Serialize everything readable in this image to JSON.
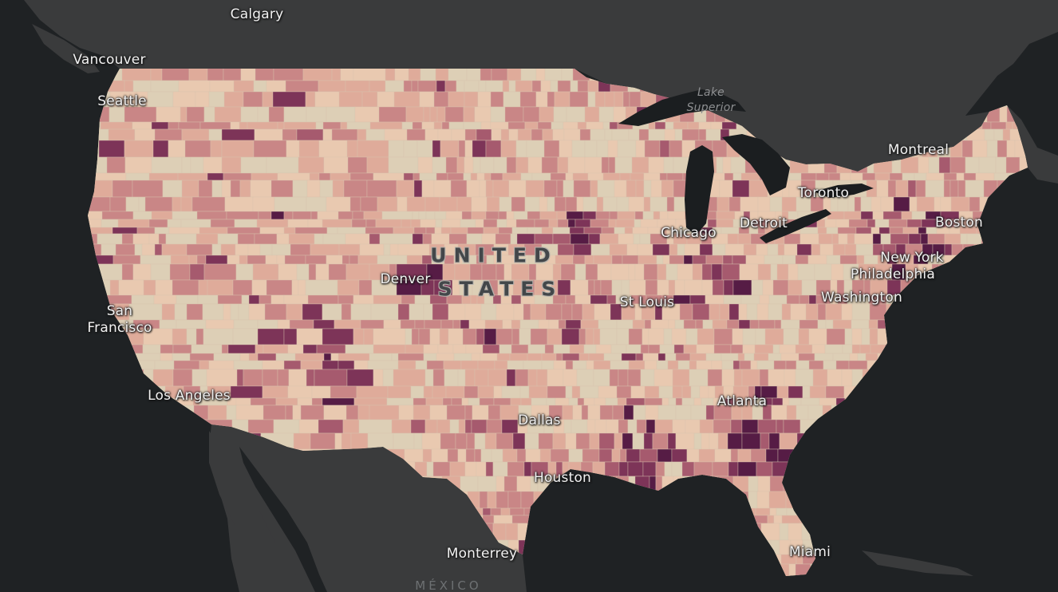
{
  "map": {
    "colors": {
      "water": "#1f2224",
      "land": "#3a3b3c",
      "lakes": "#1b1e20",
      "choropleth_scale": [
        "#ddcfb6",
        "#e9c9b0",
        "#dfab9a",
        "#c98686",
        "#a65a6e",
        "#7d3458",
        "#561c45"
      ]
    },
    "country_label": {
      "line1": "UNITED",
      "line2": "STATES"
    },
    "mexico_label": "MÉXICO",
    "water_labels": {
      "lake_superior": "Lake\nSuperior"
    },
    "cities": {
      "calgary": "Calgary",
      "vancouver": "Vancouver",
      "seattle": "Seattle",
      "san_francisco": "San\nFrancisco",
      "los_angeles": "Los Angeles",
      "denver": "Denver",
      "dallas": "Dallas",
      "houston": "Houston",
      "monterrey": "Monterrey",
      "st_louis": "St Louis",
      "chicago": "Chicago",
      "detroit": "Detroit",
      "toronto": "Toronto",
      "montreal": "Montreal",
      "boston": "Boston",
      "new_york": "New York",
      "philadelphia": "Philadelphia",
      "washington": "Washington",
      "atlanta": "Atlanta",
      "miami": "Miami"
    }
  }
}
